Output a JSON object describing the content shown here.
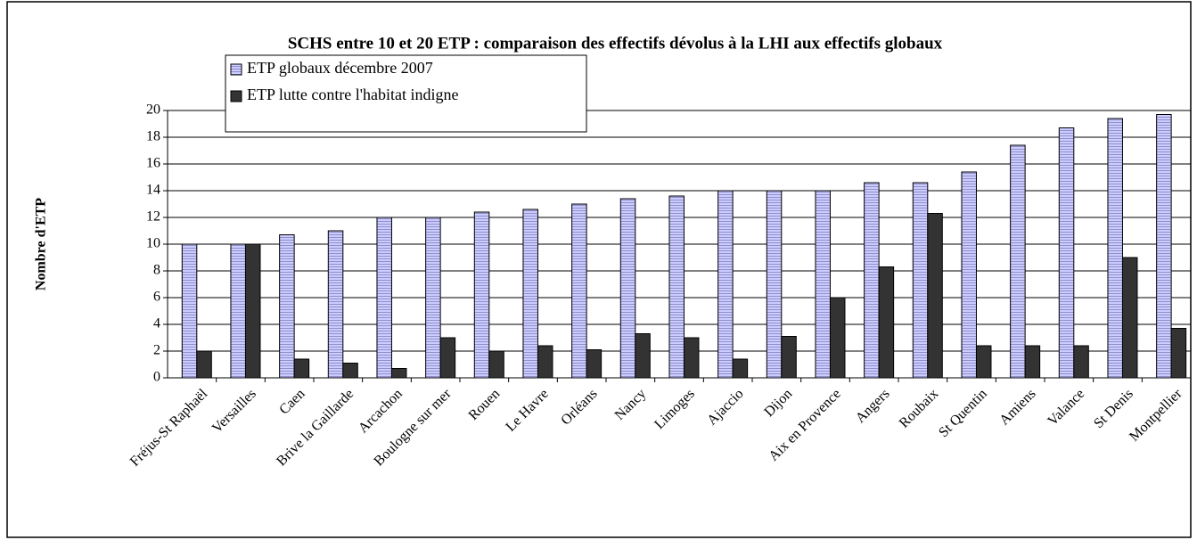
{
  "chart_data": {
    "type": "bar",
    "title": "SCHS entre 10 et 20 ETP  : comparaison des effectifs dévolus à la LHI aux effectifs globaux",
    "ylabel": "Nombre d'ETP",
    "categories": [
      "Fréjus-St Raphaël",
      "Versailles",
      "Caen",
      "Brive la Gaillarde",
      "Arcachon",
      "Boulogne sur mer",
      "Rouen",
      "Le Havre",
      "Orléans",
      "Nancy",
      "Limoges",
      "Ajaccio",
      "Dijon",
      "Aix en Provence",
      "Angers",
      "Roubaix",
      "St Quentin",
      "Amiens",
      "Valance",
      "St Denis",
      "Montpellier"
    ],
    "series": [
      {
        "name": "ETP globaux décembre 2007",
        "color": "#ccccff",
        "values": [
          10,
          10,
          10.7,
          11,
          12,
          12,
          12.4,
          12.6,
          13,
          13.4,
          13.6,
          14,
          14,
          14,
          14.6,
          14.6,
          15.4,
          17.4,
          18.7,
          19.4,
          19.7
        ]
      },
      {
        "name": "ETP lutte contre l'habitat indigne",
        "color": "#333333",
        "values": [
          2,
          10,
          1.4,
          1.1,
          0.7,
          3,
          2,
          2.4,
          2.1,
          3.3,
          3,
          1.4,
          3.1,
          6,
          8.3,
          12.3,
          2.4,
          2.4,
          2.4,
          9,
          3.7
        ]
      }
    ],
    "ylim": [
      0,
      20
    ],
    "yticks": [
      0,
      2,
      4,
      6,
      8,
      10,
      12,
      14,
      16,
      18,
      20
    ],
    "grid": true,
    "legend": "top-left"
  }
}
